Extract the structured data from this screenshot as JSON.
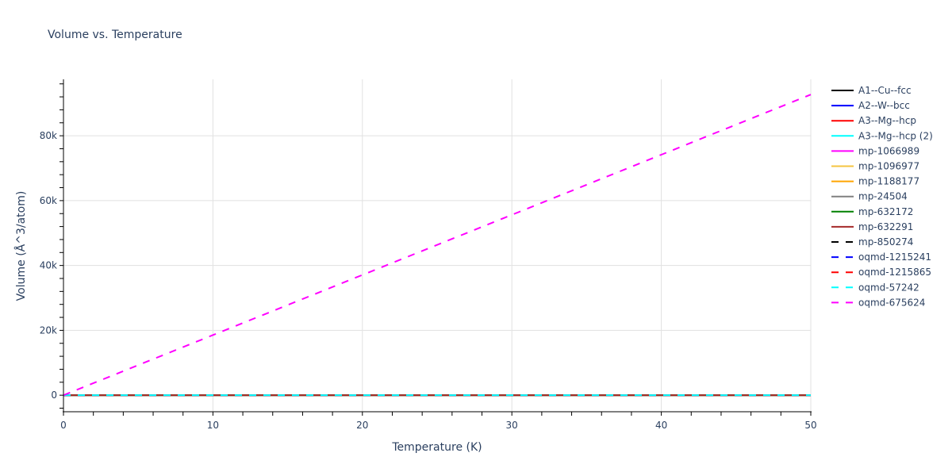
{
  "chart_data": {
    "type": "line",
    "title": "Volume vs. Temperature",
    "xlabel": "Temperature (K)",
    "ylabel": "Volume (Å^3/atom)",
    "xlim": [
      0,
      50
    ],
    "ylim": [
      -5100,
      97400
    ],
    "x_ticks": [
      "0",
      "10",
      "20",
      "30",
      "40",
      "50"
    ],
    "y_ticks": [
      "0",
      "20k",
      "40k",
      "60k",
      "80k"
    ],
    "grid": true,
    "legend_position": "right",
    "series": [
      {
        "name": "A1--Cu--fcc",
        "color": "#000000",
        "dash": "solid",
        "x": [
          0,
          50
        ],
        "y": [
          0,
          0
        ]
      },
      {
        "name": "A2--W--bcc",
        "color": "#0000ff",
        "dash": "solid",
        "x": [
          0,
          50
        ],
        "y": [
          0,
          0
        ]
      },
      {
        "name": "A3--Mg--hcp",
        "color": "#ff0000",
        "dash": "solid",
        "x": [
          0,
          50
        ],
        "y": [
          0,
          0
        ]
      },
      {
        "name": "A3--Mg--hcp (2)",
        "color": "#00ffff",
        "dash": "solid",
        "x": [
          0,
          50
        ],
        "y": [
          0,
          0
        ]
      },
      {
        "name": "mp-1066989",
        "color": "#ff00ff",
        "dash": "solid",
        "x": [
          0,
          50
        ],
        "y": [
          0,
          0
        ]
      },
      {
        "name": "mp-1096977",
        "color": "#f5c542",
        "dash": "solid",
        "x": [
          0,
          50
        ],
        "y": [
          0,
          0
        ]
      },
      {
        "name": "mp-1188177",
        "color": "#ffa500",
        "dash": "solid",
        "x": [
          0,
          50
        ],
        "y": [
          0,
          0
        ]
      },
      {
        "name": "mp-24504",
        "color": "#808080",
        "dash": "solid",
        "x": [
          0,
          50
        ],
        "y": [
          0,
          0
        ]
      },
      {
        "name": "mp-632172",
        "color": "#008000",
        "dash": "solid",
        "x": [
          0,
          50
        ],
        "y": [
          0,
          0
        ]
      },
      {
        "name": "mp-632291",
        "color": "#a52a2a",
        "dash": "solid",
        "x": [
          0,
          50
        ],
        "y": [
          0,
          0
        ]
      },
      {
        "name": "mp-850274",
        "color": "#000000",
        "dash": "dash",
        "x": [
          0,
          50
        ],
        "y": [
          0,
          0
        ]
      },
      {
        "name": "oqmd-1215241",
        "color": "#0000ff",
        "dash": "dash",
        "x": [
          0,
          50
        ],
        "y": [
          0,
          0
        ]
      },
      {
        "name": "oqmd-1215865",
        "color": "#ff0000",
        "dash": "dash",
        "x": [
          0,
          50
        ],
        "y": [
          0,
          0
        ]
      },
      {
        "name": "oqmd-57242",
        "color": "#00ffff",
        "dash": "dash",
        "x": [
          0,
          50
        ],
        "y": [
          0,
          0
        ]
      },
      {
        "name": "oqmd-675624",
        "color": "#ff00ff",
        "dash": "dash",
        "x": [
          0,
          10,
          20,
          30,
          40,
          50
        ],
        "y": [
          0,
          18540,
          37080,
          55620,
          74160,
          92700
        ]
      }
    ]
  }
}
